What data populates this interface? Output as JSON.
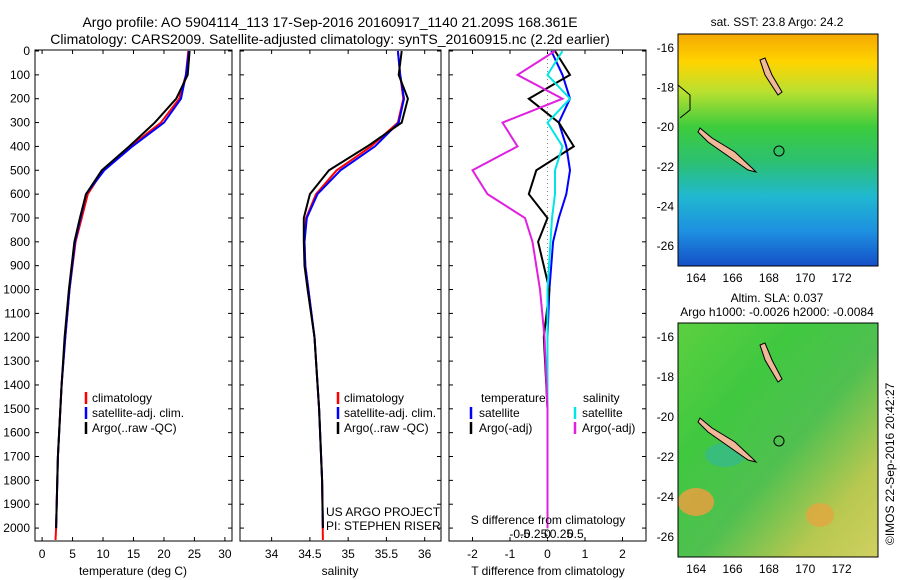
{
  "header": {
    "line1": "Argo profile: AO 5904114_113 17-Sep-2016 20160917_1140 21.209S 168.361E",
    "line2": "Climatology: CARS2009. Satellite-adjusted climatology: synTS_20160915.nc (2.2d earlier)"
  },
  "credits": {
    "line1": "US ARGO PROJECT",
    "line2": "PI: STEPHEN RISER"
  },
  "timestamp": "©IMOS 22-Sep-2016 20:42:27",
  "map_sst": {
    "title": "sat. SST: 23.8 Argo: 24.2"
  },
  "map_sla": {
    "title1": "Altim. SLA: 0.037",
    "title2": "Argo h1000: -0.0026 h2000: -0.0084"
  },
  "colors": {
    "climatology": "#ff0000",
    "satellite": "#0000ff",
    "argo": "#000000",
    "satellite_s": "#00e5e5",
    "argo_s": "#e020e0"
  },
  "chart_data": [
    {
      "type": "line",
      "xlabel": "temperature (deg C)",
      "xlim": [
        -1,
        31
      ],
      "xticks": [
        0,
        5,
        10,
        15,
        20,
        25,
        30
      ],
      "ylim": [
        0,
        2050
      ],
      "yinvert": true,
      "yticks": [
        0,
        100,
        200,
        300,
        400,
        500,
        600,
        700,
        800,
        900,
        1000,
        1100,
        1200,
        1300,
        1400,
        1500,
        1600,
        1700,
        1800,
        1900,
        2000
      ],
      "legend": [
        "climatology",
        "satellite-adj. clim.",
        "Argo(..raw -QC)"
      ],
      "series": [
        {
          "name": "climatology",
          "x": [
            24,
            23.6,
            22.5,
            19.5,
            14.5,
            10,
            7.5,
            6.5,
            5.5,
            4.5,
            3.8,
            3.2,
            2.6,
            2.3,
            2.2
          ],
          "y": [
            0,
            100,
            200,
            300,
            400,
            500,
            600,
            700,
            800,
            1000,
            1200,
            1400,
            1700,
            2000,
            2050
          ]
        },
        {
          "name": "satellite-adj. clim.",
          "x": [
            24.1,
            23.6,
            22.8,
            20,
            14.8,
            10.2,
            7.2,
            6.3,
            5.4,
            4.5,
            3.8,
            3.2,
            2.6,
            2.3
          ],
          "y": [
            0,
            100,
            200,
            300,
            400,
            500,
            600,
            700,
            800,
            1000,
            1200,
            1400,
            1700,
            2000
          ]
        },
        {
          "name": "Argo(..raw -QC)",
          "x": [
            24.2,
            23.9,
            22,
            18.5,
            14.3,
            9.8,
            7.2,
            6.2,
            5.3,
            4.4,
            3.7,
            3.2,
            2.6,
            2.3
          ],
          "y": [
            0,
            100,
            200,
            300,
            400,
            500,
            600,
            700,
            800,
            1000,
            1200,
            1400,
            1700,
            2000
          ]
        }
      ]
    },
    {
      "type": "line",
      "xlabel": "salinity",
      "xlim": [
        33.6,
        36.2
      ],
      "xticks": [
        34,
        34.5,
        35,
        35.5,
        36
      ],
      "ylim": [
        0,
        2050
      ],
      "yinvert": true,
      "legend": [
        "climatology",
        "satellite-adj. clim.",
        "Argo(..raw -QC)"
      ],
      "series": [
        {
          "name": "climatology",
          "x": [
            35.65,
            35.68,
            35.72,
            35.65,
            35.3,
            34.85,
            34.58,
            34.45,
            34.43,
            34.44,
            34.48,
            34.56,
            34.62,
            34.66,
            34.67
          ],
          "y": [
            0,
            100,
            200,
            300,
            400,
            500,
            600,
            700,
            800,
            900,
            1000,
            1200,
            1500,
            1800,
            2050
          ]
        },
        {
          "name": "satellite-adj. clim.",
          "x": [
            35.65,
            35.68,
            35.73,
            35.66,
            35.35,
            34.9,
            34.6,
            34.46,
            34.43,
            34.44,
            34.48,
            34.56,
            34.62,
            34.66,
            34.67
          ],
          "y": [
            0,
            100,
            200,
            300,
            400,
            500,
            600,
            700,
            800,
            900,
            1000,
            1200,
            1500,
            1800,
            2000
          ]
        },
        {
          "name": "Argo(..raw -QC)",
          "x": [
            35.7,
            35.66,
            35.78,
            35.7,
            35.25,
            34.75,
            34.5,
            34.42,
            34.42,
            34.43,
            34.47,
            34.56,
            34.62,
            34.66,
            34.67
          ],
          "y": [
            0,
            100,
            200,
            300,
            400,
            500,
            600,
            700,
            800,
            900,
            1000,
            1200,
            1500,
            1800,
            2000
          ]
        }
      ]
    },
    {
      "type": "line",
      "xlabel": "T difference from climatology",
      "x2label": "S difference from climatology",
      "xlim": [
        -2.6,
        2.6
      ],
      "xticks": [
        -2,
        -1,
        0,
        1,
        2
      ],
      "x2ticks": [
        -0.5,
        -0.25,
        0,
        0.25,
        0.5
      ],
      "x2ticklabels": [
        "-0.5",
        "-0.25",
        "0",
        "0.25",
        "0.5"
      ],
      "ylim": [
        0,
        2050
      ],
      "yinvert": true,
      "legend_groups": [
        {
          "title": "temperature",
          "items": [
            "satellite",
            "Argo(-adj)"
          ]
        },
        {
          "title": "salinity",
          "items": [
            "satellite",
            "Argo(-adj)"
          ]
        }
      ],
      "series": [
        {
          "name": "temperature satellite",
          "x": [
            0.1,
            0.4,
            0.6,
            0.3,
            0.5,
            0.6,
            0.5,
            0.3,
            0.15,
            0.05,
            0,
            0,
            0,
            0
          ],
          "y": [
            0,
            100,
            200,
            300,
            400,
            500,
            600,
            700,
            800,
            1000,
            1200,
            1500,
            1800,
            2000
          ]
        },
        {
          "name": "temperature Argo(-adj)",
          "x": [
            0.2,
            0.6,
            -0.5,
            0.3,
            0.7,
            -0.3,
            -0.5,
            0,
            -0.25,
            0.05,
            -0.1,
            0,
            0,
            0
          ],
          "y": [
            0,
            100,
            200,
            300,
            400,
            500,
            600,
            700,
            800,
            1000,
            1200,
            1500,
            1800,
            2000
          ]
        },
        {
          "name": "salinity satellite",
          "x": [
            0.1,
            0,
            0.15,
            0,
            0.1,
            0.05,
            0.05,
            0.03,
            0.02,
            0,
            0,
            0,
            0,
            0
          ],
          "y": [
            0,
            100,
            200,
            300,
            400,
            500,
            600,
            700,
            800,
            1000,
            1200,
            1500,
            1800,
            2000
          ]
        },
        {
          "name": "salinity Argo(-adj)",
          "x": [
            0.05,
            -0.2,
            0.1,
            -0.3,
            -0.2,
            -0.5,
            -0.4,
            -0.15,
            -0.1,
            -0.05,
            -0.02,
            0,
            0,
            0
          ],
          "y": [
            0,
            100,
            200,
            300,
            400,
            500,
            600,
            700,
            800,
            1000,
            1200,
            1500,
            1800,
            2000
          ]
        }
      ]
    },
    {
      "type": "heatmap",
      "title": "sat. SST: 23.8 Argo: 24.2",
      "xlim": [
        163,
        174
      ],
      "ylim": [
        -27,
        -15.3
      ],
      "xticks": [
        164,
        166,
        168,
        170,
        172
      ],
      "yticks": [
        -26,
        -24,
        -22,
        -20,
        -18,
        -16
      ],
      "float_position": [
        168.36,
        -21.21
      ]
    },
    {
      "type": "heatmap",
      "title": "Altim. SLA: 0.037 / Argo h1000: -0.0026 h2000: -0.0084",
      "xlim": [
        163,
        174
      ],
      "ylim": [
        -27,
        -15.3
      ],
      "xticks": [
        164,
        166,
        168,
        170,
        172
      ],
      "yticks": [
        -26,
        -24,
        -22,
        -20,
        -18,
        -16
      ],
      "float_position": [
        168.36,
        -21.21
      ]
    }
  ]
}
